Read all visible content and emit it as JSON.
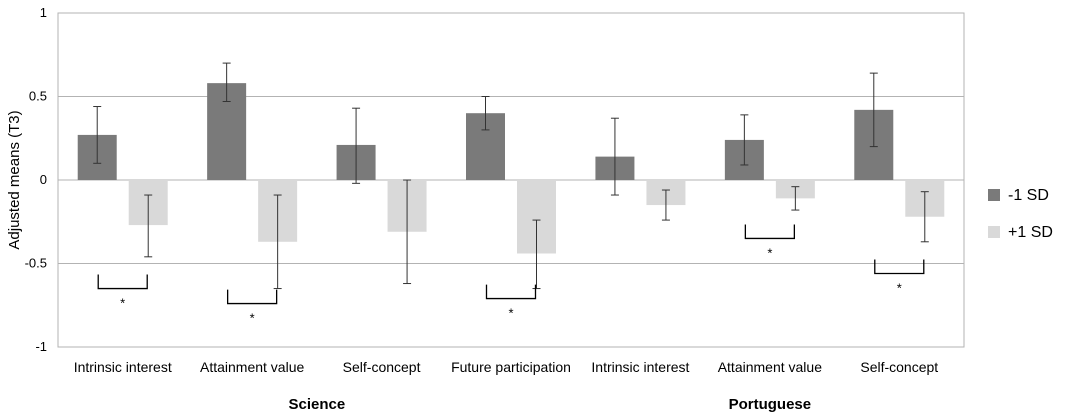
{
  "chart_data": {
    "type": "bar",
    "ylabel": "Adjusted means (T3)",
    "ylim": [
      -1,
      1
    ],
    "yticks": [
      "1",
      "0.5",
      "0",
      "-0.5",
      "-1"
    ],
    "grid": true,
    "legend_position": "right",
    "categories": [
      "Intrinsic interest",
      "Attainment value",
      "Self-concept",
      "Future participation",
      "Intrinsic interest",
      "Attainment value",
      "Self-concept"
    ],
    "groups": [
      {
        "label": "Science",
        "categories": [
          0,
          1,
          2,
          3
        ]
      },
      {
        "label": "Portuguese",
        "categories": [
          4,
          5,
          6
        ]
      }
    ],
    "series": [
      {
        "name": "-1 SD",
        "color": "#7a7a7a",
        "values": [
          0.27,
          0.58,
          0.21,
          0.4,
          0.14,
          0.24,
          0.42
        ],
        "err_low": [
          0.1,
          0.47,
          -0.02,
          0.3,
          -0.09,
          0.09,
          0.2
        ],
        "err_high": [
          0.44,
          0.7,
          0.43,
          0.5,
          0.37,
          0.39,
          0.64
        ]
      },
      {
        "name": "+1 SD",
        "color": "#d9d9d9",
        "values": [
          -0.27,
          -0.37,
          -0.31,
          -0.44,
          -0.15,
          -0.11,
          -0.22
        ],
        "err_low": [
          -0.46,
          -0.65,
          -0.62,
          -0.65,
          -0.24,
          -0.18,
          -0.37
        ],
        "err_high": [
          -0.09,
          -0.09,
          0.0,
          -0.24,
          -0.06,
          -0.04,
          -0.07
        ]
      }
    ],
    "significance": [
      {
        "category": 0,
        "y": -0.65,
        "label": "*"
      },
      {
        "category": 1,
        "y": -0.74,
        "label": "*"
      },
      {
        "category": 3,
        "y": -0.71,
        "label": "*"
      },
      {
        "category": 5,
        "y": -0.35,
        "label": "*"
      },
      {
        "category": 6,
        "y": -0.56,
        "label": "*"
      }
    ]
  }
}
